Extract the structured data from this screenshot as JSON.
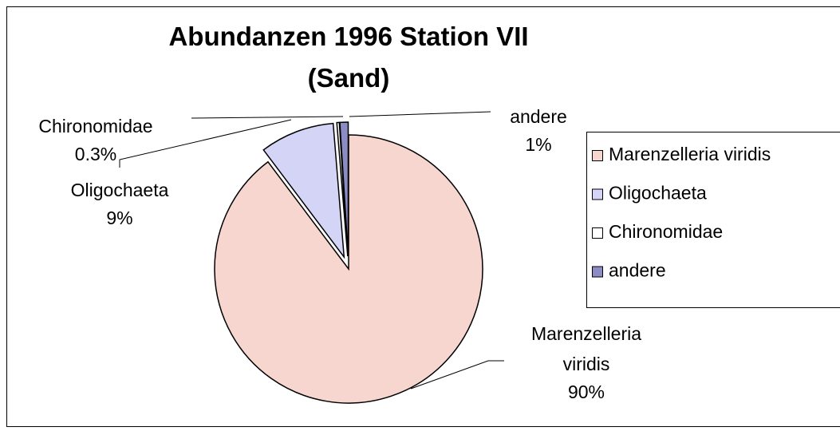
{
  "chart_data": {
    "type": "pie",
    "title": "Abundanzen 1996 Station VII (Sand)",
    "categories": [
      "Marenzelleria viridis",
      "Oligochaeta",
      "Chironomidae",
      "andere"
    ],
    "values": [
      90,
      9,
      0.3,
      1
    ],
    "value_labels": [
      "90%",
      "9%",
      "0.3%",
      "1%"
    ],
    "colors": [
      "#f6d6cf",
      "#d4d4f7",
      "#ffffff",
      "#8c8cc4"
    ],
    "legend": "right"
  }
}
